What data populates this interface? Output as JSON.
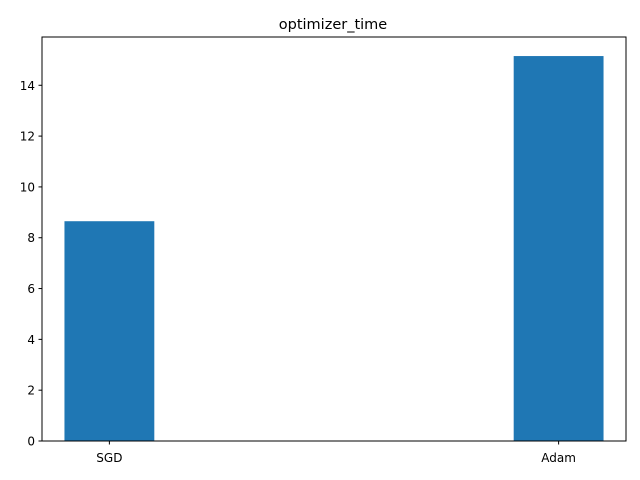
{
  "chart_data": {
    "type": "bar",
    "title": "optimizer_time",
    "xlabel": "",
    "ylabel": "",
    "categories": [
      "SGD",
      "Adam"
    ],
    "values": [
      8.65,
      15.15
    ],
    "ylim": [
      0,
      15.9
    ],
    "yticks": [
      0,
      2,
      4,
      6,
      8,
      10,
      12,
      14
    ],
    "grid": false,
    "colors": {
      "bar": "#1f77b4",
      "axis": "#000000",
      "background": "#ffffff"
    }
  }
}
